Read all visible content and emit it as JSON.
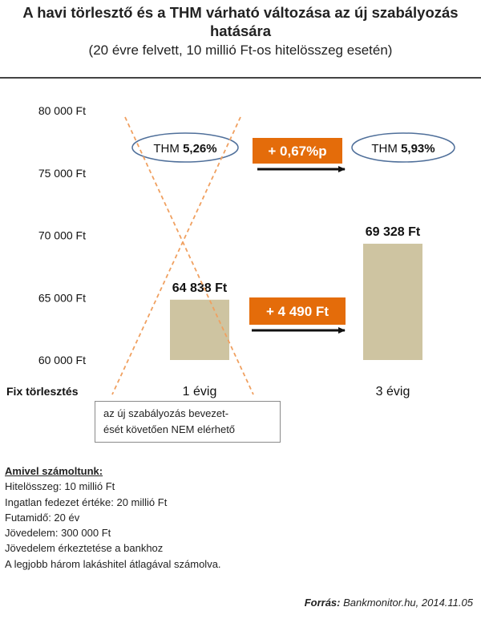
{
  "header": {
    "title": "A havi törlesztő és a THM várható változása az új szabályozás hatására",
    "subtitle": "(20 évre felvett, 10 millió  Ft-os hitelösszeg esetén)"
  },
  "chart_data": {
    "type": "bar",
    "categories": [
      "1 évig",
      "3 évig"
    ],
    "values": [
      64838,
      69328
    ],
    "value_labels": [
      "64 838 Ft",
      "69 328 Ft"
    ],
    "row_label": "Fix törlesztés",
    "ylim": [
      60000,
      80000
    ],
    "yticks": [
      60000,
      65000,
      70000,
      75000,
      80000
    ],
    "ytick_labels": [
      "60 000 Ft",
      "65 000 Ft",
      "70 000 Ft",
      "75 000 Ft",
      "80 000 Ft"
    ],
    "grid": false,
    "bar_color": "#cec4a1",
    "thm": [
      {
        "prefix": "THM ",
        "value": "5,26%"
      },
      {
        "prefix": "THM ",
        "value": "5,93%"
      }
    ],
    "thm_change": "+ 0,67%p",
    "payment_change": "+ 4 490 Ft",
    "accent_color": "#e46c0a",
    "cross_color": "#f0a060",
    "ellipse_color": "#4f6f9a"
  },
  "note": {
    "line1": "az új szabályozás bevezet-",
    "line2": "ését követően NEM elérhető"
  },
  "calc": {
    "heading": "Amivel  számoltunk:",
    "lines": [
      "Hitelösszeg: 10 millió  Ft",
      "Ingatlan fedezet értéke: 20 millió  Ft",
      "Futamidő: 20 év",
      "Jövedelem:  300 000 Ft",
      "Jövedelem  érkeztetése a bankhoz",
      "A legjobb  három lakáshitel átlagával számolva."
    ]
  },
  "source": {
    "label": "Forrás:",
    "text": " Bankmonitor.hu,  2014.11.05"
  }
}
